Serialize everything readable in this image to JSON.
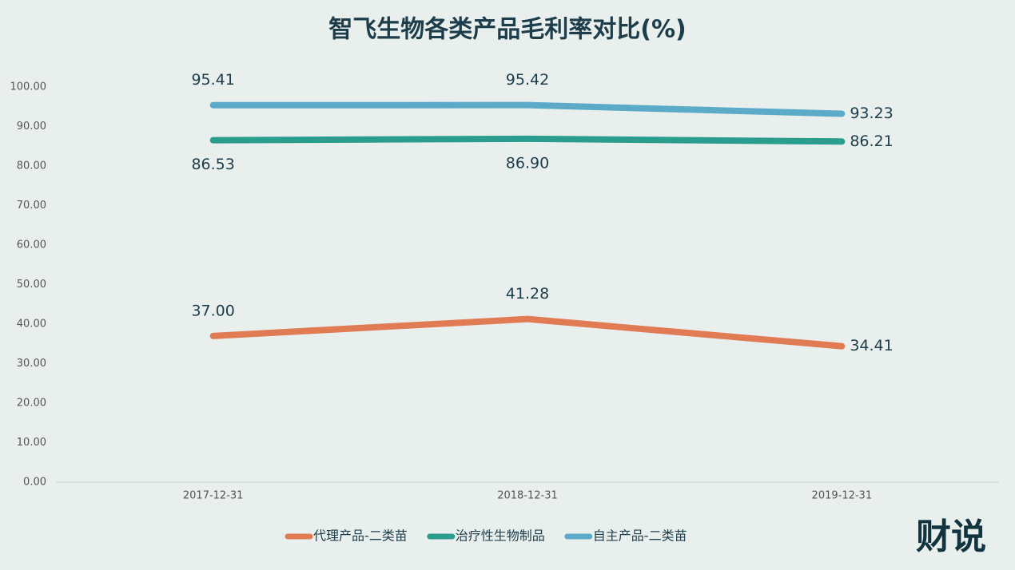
{
  "chart_data": {
    "type": "line",
    "title": "智飞生物各类产品毛利率对比(%)",
    "categories": [
      "2017-12-31",
      "2018-12-31",
      "2019-12-31"
    ],
    "series": [
      {
        "name": "代理产品-二类苗",
        "color": "#e07b54",
        "values": [
          37,
          41.28,
          34.41
        ],
        "value_labels": [
          "37.00",
          "41.28",
          "34.41"
        ]
      },
      {
        "name": "治疗性生物制品",
        "color": "#2a9d8f",
        "values": [
          86.53,
          86.9,
          86.21
        ],
        "value_labels": [
          "86.53",
          "86.90",
          "86.21"
        ]
      },
      {
        "name": "自主产品-二类苗",
        "color": "#5aaac8",
        "values": [
          95.41,
          95.42,
          93.23
        ],
        "value_labels": [
          "95.41",
          "95.42",
          "93.23"
        ]
      }
    ],
    "ylim": [
      0,
      100
    ],
    "yticks": [
      {
        "value": 0,
        "label": "0.00"
      },
      {
        "value": 10,
        "label": "10.00"
      },
      {
        "value": 20,
        "label": "20.00"
      },
      {
        "value": 30,
        "label": "30.00"
      },
      {
        "value": 40,
        "label": "40.00"
      },
      {
        "value": 50,
        "label": "50.00"
      },
      {
        "value": 60,
        "label": "60.00"
      },
      {
        "value": 70,
        "label": "70.00"
      },
      {
        "value": 80,
        "label": "80.00"
      },
      {
        "value": 90,
        "label": "90.00"
      },
      {
        "value": 100,
        "label": "100.00"
      }
    ],
    "grid": false,
    "legend": "bottom"
  },
  "brand": "财说"
}
